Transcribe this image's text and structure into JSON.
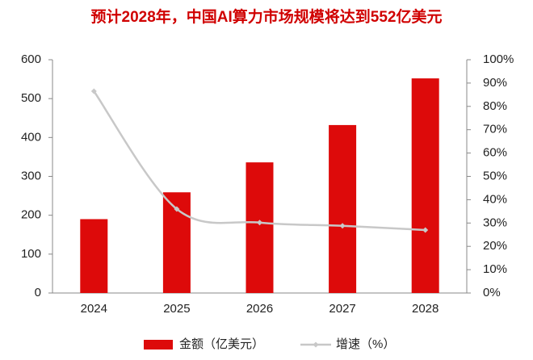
{
  "chart_data": {
    "type": "bar-line",
    "title": "预计2028年，中国AI算力市场规模将达到552亿美元",
    "categories": [
      "2024",
      "2025",
      "2026",
      "2027",
      "2028"
    ],
    "series": [
      {
        "name": "金额（亿美元）",
        "type": "bar",
        "color": "#dd0a0a",
        "values": [
          190,
          259,
          336,
          432,
          552
        ]
      },
      {
        "name": "增速（%）",
        "type": "line",
        "axis": "y2",
        "color": "#c8c8c8",
        "values": [
          86.5,
          36,
          30.2,
          28.8,
          27
        ]
      }
    ],
    "ylim": [
      0,
      600
    ],
    "yticks": [
      0,
      100,
      200,
      300,
      400,
      500,
      600
    ],
    "y2lim": [
      0,
      100
    ],
    "y2ticks": [
      {
        "value": 0,
        "label": "0%"
      },
      {
        "value": 10,
        "label": "10%"
      },
      {
        "value": 20,
        "label": "20%"
      },
      {
        "value": 30,
        "label": "30%"
      },
      {
        "value": 40,
        "label": "40%"
      },
      {
        "value": 50,
        "label": "50%"
      },
      {
        "value": 60,
        "label": "60%"
      },
      {
        "value": 70,
        "label": "70%"
      },
      {
        "value": 80,
        "label": "80%"
      },
      {
        "value": 90,
        "label": "90%"
      },
      {
        "value": 100,
        "label": "100%"
      }
    ],
    "grid": false,
    "legend": "bottom"
  }
}
